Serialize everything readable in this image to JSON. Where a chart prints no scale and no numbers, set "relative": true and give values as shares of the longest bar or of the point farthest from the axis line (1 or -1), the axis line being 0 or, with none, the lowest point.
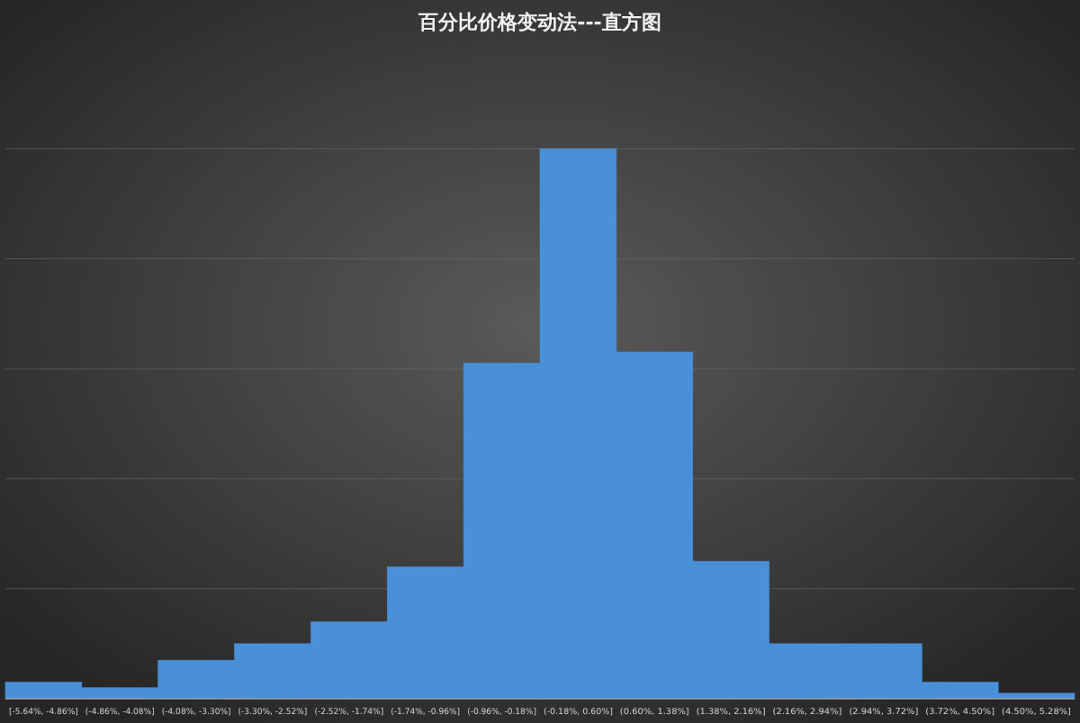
{
  "chart_data": {
    "type": "bar",
    "title": "百分比价格变动法---直方图",
    "categories": [
      "[-5.64%, -4.86%]",
      "(-4.86%, -4.08%]",
      "(-4.08%, -3.30%]",
      "(-3.30%, -2.52%]",
      "(-2.52%, -1.74%]",
      "(-1.74%, -0.96%]",
      "(-0.96%, -0.18%]",
      "(-0.18%, 0.60%]",
      "(0.60%, 1.38%]",
      "(1.38%, 2.16%]",
      "(2.16%, 2.94%]",
      "(2.94%, 3.72%]",
      "(3.72%, 4.50%]",
      "(4.50%, 5.28%]"
    ],
    "values": [
      0.03,
      0.02,
      0.07,
      0.1,
      0.14,
      0.24,
      0.61,
      1,
      0.63,
      0.25,
      0.1,
      0.1,
      0.03,
      0.01
    ],
    "color": "#4a90d9",
    "relative": true,
    "grid": "y"
  }
}
